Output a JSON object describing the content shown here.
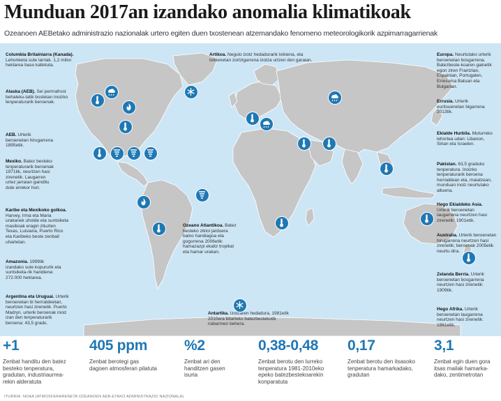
{
  "header": {
    "title": "Munduan 2017an izandako anomalia klimatikoak",
    "subtitle": "Ozeanoen AEBetako administrazio nazionalak urtero egiten duen txostenean atzemandako fenomeno meteorologikorik azpimarragarrienak"
  },
  "annotations": [
    {
      "title": "Columbia Britainiarra (Kanada).",
      "text": "Lehorteeta sute larriak. 1,2 milioi hektarea baso kaltetuta."
    },
    {
      "title": "Alaska (AEB).",
      "text": "Sei permafrost behaleku-tatik bostetan inoizko tenperaturarik beroenak."
    },
    {
      "title": "AEB.",
      "text": "Urterik beroenetan hirugarrena 1895etik."
    },
    {
      "title": "Mexiko.",
      "text": "Batez besteko tenperaturarik beroenak 1971tik, neurtzen hasi zirenetik. Laugarren urtez jarraian gainditu dute errekor hori."
    },
    {
      "title": "Karibe eta Mexikoko golkoa.",
      "text": "Harvey, Irma eta Maria urakanek uholde eta suntsiketa masiboak eragin zituzten Texas, Luisiana, Puerto Rico eta Karibeko beste zenbait uhartetan."
    },
    {
      "title": "Amazonia.",
      "text": "1999tik izandako sute kopururik eta suntsiketa-rik handiena: 272.000 hektarea."
    },
    {
      "title": "Argentina eta Uruguai.",
      "text": "Urterik beroenetan bi herrialdeetan, neurtzen hasi zirenetik. Puerto Madryn, urterik beroenak inoiz izan den tenperaturarik beroena: 43,5 gradu."
    },
    {
      "title": "Artikoa.",
      "text": "Negulo izotz hedadurarik txikiena, eta txikienetan zortzigarrena izotza urtzen den garaian."
    },
    {
      "title": "Ozeano Atlantikoa.",
      "text": "Batez besteko zikloi jarduera baino handiagoa eta gogorrena 2006etik: hamazazpi ekaitz tropikal eta hamar urakan."
    },
    {
      "title": "Antartika.",
      "text": "Izotzaren hedadura, 1981etik 2010era bitarteko batezbestekotik nabarmen behera."
    },
    {
      "title": "Europa.",
      "text": "Neurtutako urterik beroenetan bosgarrena. Batezbeste-koaren gainetik egon ziren Frantzian, Espainian, Portugalen, Erresuma Batuan eta Bulgarian."
    },
    {
      "title": "Errusia.",
      "text": "Urterik euritsuenetan bigarrena 2013tik."
    },
    {
      "title": "Ekialde Hurbila.",
      "text": "Muturreko lehortea udan: Libanon, Sirian eta Israelen."
    },
    {
      "title": "Pakistan.",
      "text": "63,5 graduko tenperatura. Inoizko tenperaturarik beroena herrialdean eta, maiatzean, munduan inoiz neurtutako altuena."
    },
    {
      "title": "Hego Ekialdeko Asia.",
      "text": "Urterik beroenetan laugarrena neurtzen hasi zirenetik: 1901etik."
    },
    {
      "title": "Australia.",
      "text": "Urterik beroenetan hirugarrena neurtzen hasi zirenetik; beroenak 2005etik neurtu dira."
    },
    {
      "title": "Zelanda Berria.",
      "text": "Urterik beroenetan bosgarrena neurtzen hasi zirenetik: 1909tik."
    },
    {
      "title": "Hego Afrika.",
      "text": "Urterik beroenetan laugarrena neurtzen hasi zirenetik: 1961etik."
    }
  ],
  "icons": [
    "thermometer-icon",
    "fire-icon",
    "snowflake-icon",
    "hurricane-icon",
    "rain-icon"
  ],
  "stats": [
    {
      "value": "+1",
      "desc": "Zenbat handitu den batez besteko tenperatura, gradutan, industriaurrea-rekin alderatuta"
    },
    {
      "value": "405 ppm",
      "desc": "Zenbat berotegi gas dagoen atmosferan pilatuta"
    },
    {
      "value": "%2",
      "desc": "Zenbat ari den handitzen gasen isuria"
    },
    {
      "value": "0,38-0,48",
      "desc": "Zenbat berotu den lurreko tenperatura 1981-2010eko epeko batezbestekoarekin konparatuta"
    },
    {
      "value": "0,17",
      "desc": "Zenbat berotu den itsasoko tenperatura hamarkadako, gradutan"
    },
    {
      "value": "3,1",
      "desc": "Zenbat egin duen gora itsas mailak hamarka-dako, zentimetrotan"
    }
  ],
  "source": "ITURRIA: NOAA (ATMOSFERARENETA OZEANOEN AEB-ETAKO ADMINISTRAZIO NAZIONALA)",
  "colors": {
    "ocean": "#cde6f5",
    "land": "#c8c8c8",
    "accent": "#1f78b4"
  }
}
